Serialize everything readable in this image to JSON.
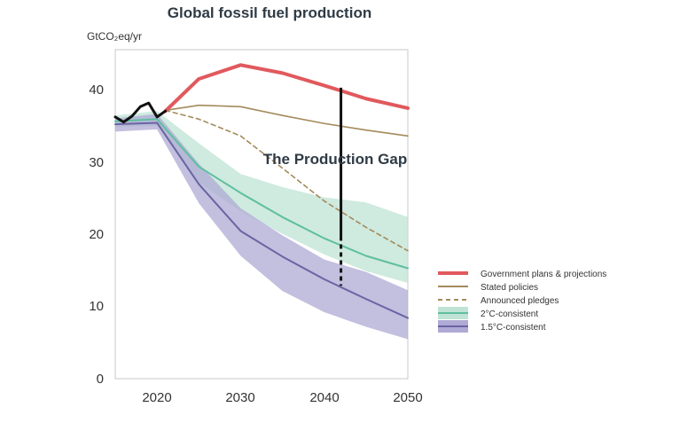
{
  "chart_data": {
    "type": "line",
    "title": "Global fossil fuel production",
    "ylabel": "GtCO₂eq/yr",
    "xlabel": "",
    "xlim": [
      2015,
      2050
    ],
    "ylim": [
      0,
      45
    ],
    "x_ticks": [
      "2020",
      "2030",
      "2040",
      "2050"
    ],
    "y_ticks": [
      "0",
      "10",
      "20",
      "30",
      "40"
    ],
    "annotation": "The Production Gap",
    "gap_marker": {
      "x": 2042,
      "y_top": 39.8,
      "y_bottom": 12.7
    },
    "historical": {
      "x": [
        2015,
        2016,
        2017,
        2018,
        2019,
        2020,
        2021
      ],
      "y": [
        35.8,
        35.1,
        35.9,
        37.2,
        37.7,
        35.8,
        36.6
      ]
    },
    "series": [
      {
        "name": "Government plans & projections",
        "color": "#e0595d",
        "x": [
          2021,
          2025,
          2030,
          2035,
          2040,
          2045,
          2050
        ],
        "y": [
          36.6,
          41.0,
          42.9,
          41.8,
          40.1,
          38.3,
          37.0
        ]
      },
      {
        "name": "Stated policies",
        "color": "#a38b5b",
        "x": [
          2021,
          2025,
          2030,
          2035,
          2040,
          2045,
          2050
        ],
        "y": [
          36.7,
          37.4,
          37.2,
          36.0,
          34.9,
          34.0,
          33.2
        ]
      },
      {
        "name": "Announced pledges",
        "color": "#a38b5b",
        "x": [
          2021,
          2025,
          2030,
          2035,
          2040,
          2045,
          2050
        ],
        "y": [
          36.7,
          35.5,
          33.2,
          28.8,
          24.3,
          20.7,
          17.5
        ]
      },
      {
        "name": "2°C-consistent",
        "color": "#5ebfa0",
        "x": [
          2015,
          2020,
          2025,
          2030,
          2035,
          2040,
          2045,
          2050
        ],
        "y": [
          35.2,
          35.5,
          29.0,
          25.4,
          22.1,
          19.2,
          16.8,
          15.1
        ],
        "band_upper": [
          36.0,
          36.6,
          32.2,
          28.0,
          26.2,
          24.8,
          24.1,
          22.1
        ],
        "band_lower": [
          34.4,
          34.6,
          26.9,
          22.9,
          19.8,
          17.0,
          14.7,
          13.1
        ]
      },
      {
        "name": "1.5°C-consistent",
        "color": "#6a64a2",
        "x": [
          2015,
          2020,
          2025,
          2030,
          2035,
          2040,
          2045,
          2050
        ],
        "y": [
          34.8,
          35.0,
          26.6,
          20.2,
          16.7,
          13.6,
          10.9,
          8.3
        ],
        "band_upper": [
          35.6,
          36.2,
          29.4,
          23.3,
          19.6,
          16.3,
          14.6,
          12.1
        ],
        "band_lower": [
          33.8,
          34.1,
          24.0,
          16.8,
          12.0,
          9.1,
          7.1,
          5.4
        ]
      }
    ],
    "grid": false,
    "legend_position": "right"
  },
  "colors": {
    "historical": "#111111",
    "gap_marker": "#111111",
    "band_2c": "#bfe3d4",
    "band_1_5c": "#aeaad4",
    "axis": "#bbbbbb"
  }
}
